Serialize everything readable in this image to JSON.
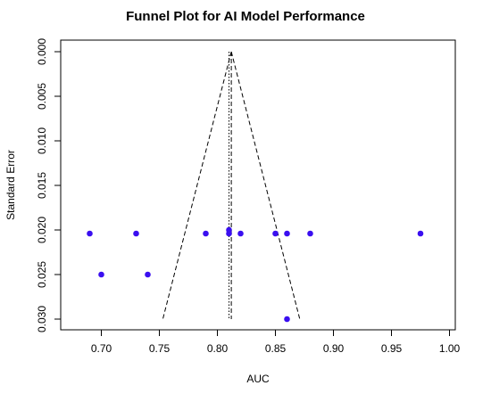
{
  "chart_data": {
    "type": "scatter",
    "title": "Funnel Plot for AI Model Performance",
    "xlabel": "AUC",
    "ylabel": "Standard Error",
    "xlim": [
      0.665,
      1.005
    ],
    "ylim": [
      0.0312,
      -0.0013
    ],
    "y_reversed": true,
    "x_ticks": [
      "0.70",
      "0.75",
      "0.80",
      "0.85",
      "0.90",
      "0.95",
      "1.00"
    ],
    "y_ticks": [
      "0.000",
      "0.005",
      "0.010",
      "0.015",
      "0.020",
      "0.025",
      "0.030"
    ],
    "grid": false,
    "point_color": "#3a0ff0",
    "series": [
      {
        "x": [
          0.69,
          0.7,
          0.73,
          0.74,
          0.79,
          0.81,
          0.81,
          0.82,
          0.85,
          0.86,
          0.86,
          0.88,
          0.975
        ],
        "y": [
          0.0204,
          0.025,
          0.0204,
          0.025,
          0.0204,
          0.0204,
          0.02,
          0.0204,
          0.0204,
          0.0204,
          0.03,
          0.0204,
          0.0204
        ]
      }
    ],
    "reference_lines": {
      "vertical_dotted_x": 0.81,
      "vertical_dashed_x": 0.812,
      "funnel_apex": [
        0.812,
        0.0
      ],
      "funnel_base_left": [
        0.753,
        0.03
      ],
      "funnel_base_right": [
        0.871,
        0.03
      ]
    }
  }
}
